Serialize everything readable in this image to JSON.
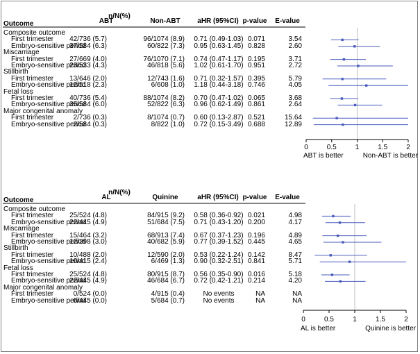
{
  "panels": [
    {
      "header": {
        "outcome": "Outcome",
        "nN": "n/N(%)",
        "group1": "ABT",
        "group2": "Non-ABT",
        "ahr": "aHR (95%CI)",
        "pvalue": "p-value",
        "evalue": "E-value"
      },
      "groups": [
        {
          "label": "Composite outcome",
          "rows": [
            {
              "label": "First trimester",
              "g1": "42/736 (5.7)",
              "g2": "96/1074 (8.9)",
              "ahr_text": "0.71 (0.49-1.03)",
              "p": "0.071",
              "e": "3.54",
              "est": 0.71,
              "lo": 0.49,
              "hi": 1.03
            },
            {
              "label": "Embryo-sensitive period",
              "g1": "37/584 (6.3)",
              "g2": "60/822 (7.3)",
              "ahr_text": "0.95 (0.63-1.45)",
              "p": "0.828",
              "e": "2.60",
              "est": 0.95,
              "lo": 0.63,
              "hi": 1.45
            }
          ]
        },
        {
          "label": "Miscarriage",
          "rows": [
            {
              "label": "First trimester",
              "g1": "27/669 (4.0)",
              "g2": "76/1070 (7.1)",
              "ahr_text": "0.74 (0.47-1.17)",
              "p": "0.195",
              "e": "3.71",
              "est": 0.74,
              "lo": 0.47,
              "hi": 1.17
            },
            {
              "label": "Embryo-sensitive period",
              "g1": "23/533 (4.3)",
              "g2": "46/818 (5.6)",
              "ahr_text": "1.02 (0.61-1.70)",
              "p": "0.951",
              "e": "2.72",
              "est": 1.02,
              "lo": 0.61,
              "hi": 1.7
            }
          ]
        },
        {
          "label": "Stillbirth",
          "rows": [
            {
              "label": "First trimester",
              "g1": "13/646 (2.0)",
              "g2": "12/743 (1.6)",
              "ahr_text": "0.71 (0.32-1.57)",
              "p": "0.395",
              "e": "5.79",
              "est": 0.71,
              "lo": 0.32,
              "hi": 1.57
            },
            {
              "label": "Embryo-sensitive period",
              "g1": "12/518 (2.3)",
              "g2": "6/608 (1.0)",
              "ahr_text": "1.18 (0.44-3.18)",
              "p": "0.746",
              "e": "4.05",
              "est": 1.18,
              "lo": 0.44,
              "hi": 3.18
            }
          ]
        },
        {
          "label": "Fetal loss",
          "rows": [
            {
              "label": "First trimester",
              "g1": "40/736 (5.4)",
              "g2": "88/1074 (8.2)",
              "ahr_text": "0.70 (0.47-1.02)",
              "p": "0.065",
              "e": "3.68",
              "est": 0.7,
              "lo": 0.47,
              "hi": 1.02
            },
            {
              "label": "Embryo-sensitive period",
              "g1": "35/584 (6.0)",
              "g2": "52/822 (6.3)",
              "ahr_text": "0.96 (0.62-1.49)",
              "p": "0.861",
              "e": "2.64",
              "est": 0.96,
              "lo": 0.62,
              "hi": 1.49
            }
          ]
        },
        {
          "label": "Major congenital anomaly",
          "rows": [
            {
              "label": "First trimester",
              "g1": "2/736 (0.3)",
              "g2": "8/1074 (0.7)",
              "ahr_text": "0.60 (0.13-2.87)",
              "p": "0.521",
              "e": "15.64",
              "est": 0.6,
              "lo": 0.13,
              "hi": 2.87
            },
            {
              "label": "Embryo-sensitive period",
              "g1": "2/584 (0.3)",
              "g2": "8/822 (1.0)",
              "ahr_text": "0.72 (0.15-3.49)",
              "p": "0.688",
              "e": "12.89",
              "est": 0.72,
              "lo": 0.15,
              "hi": 3.49
            }
          ]
        }
      ],
      "axis": {
        "ticks": [
          "0",
          "0.5",
          "1",
          "1.5",
          "2"
        ],
        "min": 0,
        "max": 2,
        "ref": 1
      },
      "left_label": "ABT is better",
      "right_label": "Non-ABT is better"
    },
    {
      "header": {
        "outcome": "Outcome",
        "nN": "n/N(%)",
        "group1": "AL",
        "group2": "Quinine",
        "ahr": "aHR (95%CI)",
        "pvalue": "p-value",
        "evalue": "E-value"
      },
      "groups": [
        {
          "label": "Composite outcome",
          "rows": [
            {
              "label": "First trimester",
              "g1": "25/524 (4.8)",
              "g2": "84/915 (9.2)",
              "ahr_text": "0.58 (0.36-0.92)",
              "p": "0.021",
              "e": "4.98",
              "est": 0.58,
              "lo": 0.36,
              "hi": 0.92
            },
            {
              "label": "Embryo-sensitive period",
              "g1": "22/445 (4.9)",
              "g2": "51/684 (7.5)",
              "ahr_text": "0.71 (0.43-1.20)",
              "p": "0.200",
              "e": "4.17",
              "est": 0.71,
              "lo": 0.43,
              "hi": 1.2
            }
          ]
        },
        {
          "label": "Miscarriage",
          "rows": [
            {
              "label": "First trimester",
              "g1": "15/464 (3.2)",
              "g2": "68/913 (7.4)",
              "ahr_text": "0.67 (0.37-1.23)",
              "p": "0.196",
              "e": "4.89",
              "est": 0.67,
              "lo": 0.37,
              "hi": 1.23
            },
            {
              "label": "Embryo-sensitive period",
              "g1": "12/398 (3.0)",
              "g2": "40/682 (5.9)",
              "ahr_text": "0.77 (0.39-1.52)",
              "p": "0.445",
              "e": "4.65",
              "est": 0.77,
              "lo": 0.39,
              "hi": 1.52
            }
          ]
        },
        {
          "label": "Stillbirth",
          "rows": [
            {
              "label": "First trimester",
              "g1": "10/488 (2.0)",
              "g2": "12/590 (2.0)",
              "ahr_text": "0.53 (0.22-1.24)",
              "p": "0.142",
              "e": "8.47",
              "est": 0.53,
              "lo": 0.22,
              "hi": 1.24
            },
            {
              "label": "Embryo-sensitive period",
              "g1": "10/415 (2.4)",
              "g2": "6/469 (1.3)",
              "ahr_text": "0.90 (0.32-2.51)",
              "p": "0.841",
              "e": "5.71",
              "est": 0.9,
              "lo": 0.32,
              "hi": 2.51
            }
          ]
        },
        {
          "label": "Fetal loss",
          "rows": [
            {
              "label": "First trimester",
              "g1": "25/524 (4.8)",
              "g2": "80/915 (8.7)",
              "ahr_text": "0.56 (0.35-0.90)",
              "p": "0.016",
              "e": "5.18",
              "est": 0.56,
              "lo": 0.35,
              "hi": 0.9
            },
            {
              "label": "Embryo-sensitive period",
              "g1": "22/445 (4.9)",
              "g2": "46/684 (6.7)",
              "ahr_text": "0.72 (0.42-1.21)",
              "p": "0.214",
              "e": "4.20",
              "est": 0.72,
              "lo": 0.42,
              "hi": 1.21
            }
          ]
        },
        {
          "label": "Major congenital anomaly",
          "rows": [
            {
              "label": "First trimester",
              "g1": "0/524 (0.0)",
              "g2": "4/915 (0.4)",
              "ahr_text": "No events",
              "p": "NA",
              "e": "NA",
              "est": null,
              "lo": null,
              "hi": null
            },
            {
              "label": "Embryo-sensitive period",
              "g1": "0/445 (0.0)",
              "g2": "5/684 (0.7)",
              "ahr_text": "No events",
              "p": "NA",
              "e": "NA",
              "est": null,
              "lo": null,
              "hi": null
            }
          ]
        }
      ],
      "axis": {
        "ticks": [
          "0",
          "0.5",
          "1",
          "1.5",
          "2"
        ],
        "min": 0,
        "max": 2,
        "ref": 1
      },
      "left_label": "AL is better",
      "right_label": "Quinine is better"
    }
  ],
  "chart_data": [
    {
      "type": "forest",
      "xlim": [
        0,
        2
      ],
      "reference": 1,
      "series": [
        {
          "name": "First trimester",
          "values": [
            0.71,
            0.74,
            0.71,
            0.7,
            0.6
          ]
        },
        {
          "name": "Embryo-sensitive period",
          "values": [
            0.95,
            1.02,
            1.18,
            0.96,
            0.72
          ]
        }
      ],
      "categories": [
        "Composite outcome",
        "Miscarriage",
        "Stillbirth",
        "Fetal loss",
        "Major congenital anomaly"
      ]
    },
    {
      "type": "forest",
      "xlim": [
        0,
        2
      ],
      "reference": 1,
      "series": [
        {
          "name": "First trimester",
          "values": [
            0.58,
            0.67,
            0.53,
            0.56,
            null
          ]
        },
        {
          "name": "Embryo-sensitive period",
          "values": [
            0.71,
            0.77,
            0.9,
            0.72,
            null
          ]
        }
      ],
      "categories": [
        "Composite outcome",
        "Miscarriage",
        "Stillbirth",
        "Fetal loss",
        "Major congenital anomaly"
      ]
    }
  ],
  "colors": {
    "marker": "#4a5bbd",
    "ref": "#bfbfbf",
    "axis": "#000000"
  }
}
